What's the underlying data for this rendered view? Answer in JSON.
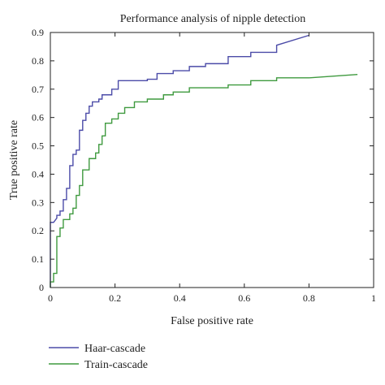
{
  "chart_data": {
    "type": "line",
    "title": "Performance analysis of nipple detection",
    "xlabel": "False positive rate",
    "ylabel": "True positive rate",
    "xlim": [
      0,
      1
    ],
    "ylim": [
      0,
      0.9
    ],
    "xticks": [
      0,
      0.2,
      0.4,
      0.6,
      0.8,
      1
    ],
    "yticks": [
      0,
      0.1,
      0.2,
      0.3,
      0.4,
      0.5,
      0.6,
      0.7,
      0.8,
      0.9
    ],
    "xtick_labels": [
      "0",
      "0.2",
      "0.4",
      "0.6",
      "0.8",
      "1"
    ],
    "ytick_labels": [
      "0",
      "0.1",
      "0.2",
      "0.3",
      "0.4",
      "0.5",
      "0.6",
      "0.7",
      "0.8",
      "0.9"
    ],
    "grid": false,
    "legend_position": "bottom-left-outside",
    "series": [
      {
        "name": "Haar-cascade",
        "color": "#4b4ba8",
        "x": [
          0,
          0,
          0.01,
          0.02,
          0.02,
          0.03,
          0.03,
          0.04,
          0.04,
          0.05,
          0.05,
          0.06,
          0.06,
          0.07,
          0.07,
          0.08,
          0.08,
          0.09,
          0.09,
          0.1,
          0.1,
          0.11,
          0.11,
          0.12,
          0.12,
          0.13,
          0.13,
          0.15,
          0.15,
          0.16,
          0.16,
          0.19,
          0.19,
          0.21,
          0.21,
          0.3,
          0.3,
          0.33,
          0.33,
          0.38,
          0.38,
          0.43,
          0.43,
          0.48,
          0.48,
          0.55,
          0.55,
          0.62,
          0.62,
          0.7,
          0.7,
          0.8
        ],
        "y": [
          0,
          0.23,
          0.23,
          0.245,
          0.255,
          0.255,
          0.27,
          0.27,
          0.31,
          0.31,
          0.35,
          0.35,
          0.43,
          0.43,
          0.47,
          0.47,
          0.485,
          0.485,
          0.555,
          0.555,
          0.59,
          0.59,
          0.615,
          0.615,
          0.64,
          0.64,
          0.655,
          0.655,
          0.665,
          0.665,
          0.68,
          0.68,
          0.7,
          0.7,
          0.73,
          0.73,
          0.735,
          0.735,
          0.755,
          0.755,
          0.765,
          0.765,
          0.78,
          0.78,
          0.79,
          0.79,
          0.815,
          0.815,
          0.83,
          0.83,
          0.855,
          0.89
        ]
      },
      {
        "name": "Train-cascade",
        "color": "#3f9a3f",
        "x": [
          0,
          0,
          0.01,
          0.01,
          0.02,
          0.02,
          0.03,
          0.03,
          0.04,
          0.04,
          0.06,
          0.06,
          0.07,
          0.07,
          0.08,
          0.08,
          0.09,
          0.09,
          0.1,
          0.1,
          0.12,
          0.12,
          0.14,
          0.14,
          0.15,
          0.15,
          0.16,
          0.16,
          0.17,
          0.17,
          0.19,
          0.19,
          0.21,
          0.21,
          0.23,
          0.23,
          0.26,
          0.26,
          0.3,
          0.3,
          0.35,
          0.35,
          0.38,
          0.38,
          0.43,
          0.43,
          0.55,
          0.55,
          0.62,
          0.62,
          0.7,
          0.7,
          0.8,
          0.95
        ],
        "y": [
          0,
          0.02,
          0.02,
          0.05,
          0.05,
          0.18,
          0.18,
          0.21,
          0.21,
          0.24,
          0.24,
          0.26,
          0.26,
          0.28,
          0.28,
          0.325,
          0.325,
          0.36,
          0.36,
          0.415,
          0.415,
          0.455,
          0.455,
          0.475,
          0.475,
          0.505,
          0.505,
          0.535,
          0.535,
          0.58,
          0.58,
          0.595,
          0.595,
          0.615,
          0.615,
          0.635,
          0.635,
          0.655,
          0.655,
          0.665,
          0.665,
          0.68,
          0.68,
          0.69,
          0.69,
          0.705,
          0.705,
          0.715,
          0.715,
          0.73,
          0.73,
          0.74,
          0.74,
          0.752
        ]
      }
    ]
  }
}
